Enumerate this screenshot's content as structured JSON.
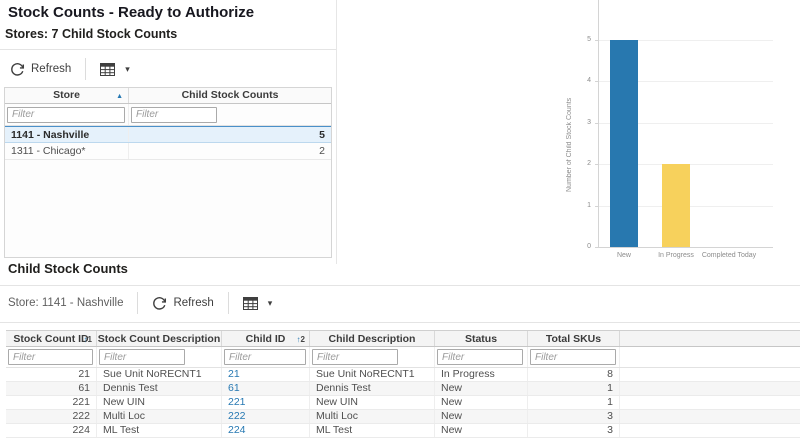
{
  "icons": {
    "sort_asc": "▲",
    "sort_arrow": "↑",
    "caret_down": "▾"
  },
  "colors": {
    "accent_blue": "#2878af",
    "accent_yellow": "#f7d15c",
    "link_blue": "#2678b2",
    "selected_row": "#e5f1fb"
  },
  "header": {
    "title": "Stock Counts - Ready to Authorize",
    "subtitle": "Stores: 7 Child Stock Counts"
  },
  "stores_panel": {
    "refresh_label": "Refresh",
    "table": {
      "filter_placeholder": "Filter",
      "columns": [
        {
          "label": "Store",
          "sorted": "ascending"
        },
        {
          "label": "Child Stock Counts"
        }
      ],
      "rows": [
        {
          "store": "1141 - Nashville",
          "count": "5",
          "selected": true
        },
        {
          "store": "1311 - Chicago*",
          "count": "2",
          "selected": false
        }
      ]
    }
  },
  "chart_data": {
    "type": "bar",
    "title": "",
    "xlabel": "",
    "ylabel": "Number of Child Stock Counts",
    "categories": [
      "New",
      "In Progress",
      "Completed Today"
    ],
    "values": [
      5,
      2,
      0
    ],
    "ylim": [
      0,
      6
    ],
    "yticks": [
      0,
      1,
      2,
      3,
      4,
      5,
      6
    ],
    "bar_colors": [
      "#2878af",
      "#f7d15c"
    ],
    "grid": true,
    "legend": false
  },
  "child_section": {
    "title": "Child Stock Counts",
    "store_label": "Store: 1141 - Nashville",
    "refresh_label": "Refresh",
    "table": {
      "filter_placeholder": "Filter",
      "columns": [
        {
          "label": "Stock Count ID",
          "sort_badge": "1"
        },
        {
          "label": "Stock Count Description"
        },
        {
          "label": "Child ID",
          "sort_badge": "2"
        },
        {
          "label": "Child Description"
        },
        {
          "label": "Status"
        },
        {
          "label": "Total SKUs"
        }
      ],
      "rows": [
        [
          "21",
          "Sue Unit NoRECNT1",
          "21",
          "Sue Unit NoRECNT1",
          "In Progress",
          "8"
        ],
        [
          "61",
          "Dennis Test",
          "61",
          "Dennis Test",
          "New",
          "1"
        ],
        [
          "221",
          "New UIN",
          "221",
          "New UIN",
          "New",
          "1"
        ],
        [
          "222",
          "Multi Loc",
          "222",
          "Multi Loc",
          "New",
          "3"
        ],
        [
          "224",
          "ML Test",
          "224",
          "ML Test",
          "New",
          "3"
        ]
      ]
    }
  }
}
